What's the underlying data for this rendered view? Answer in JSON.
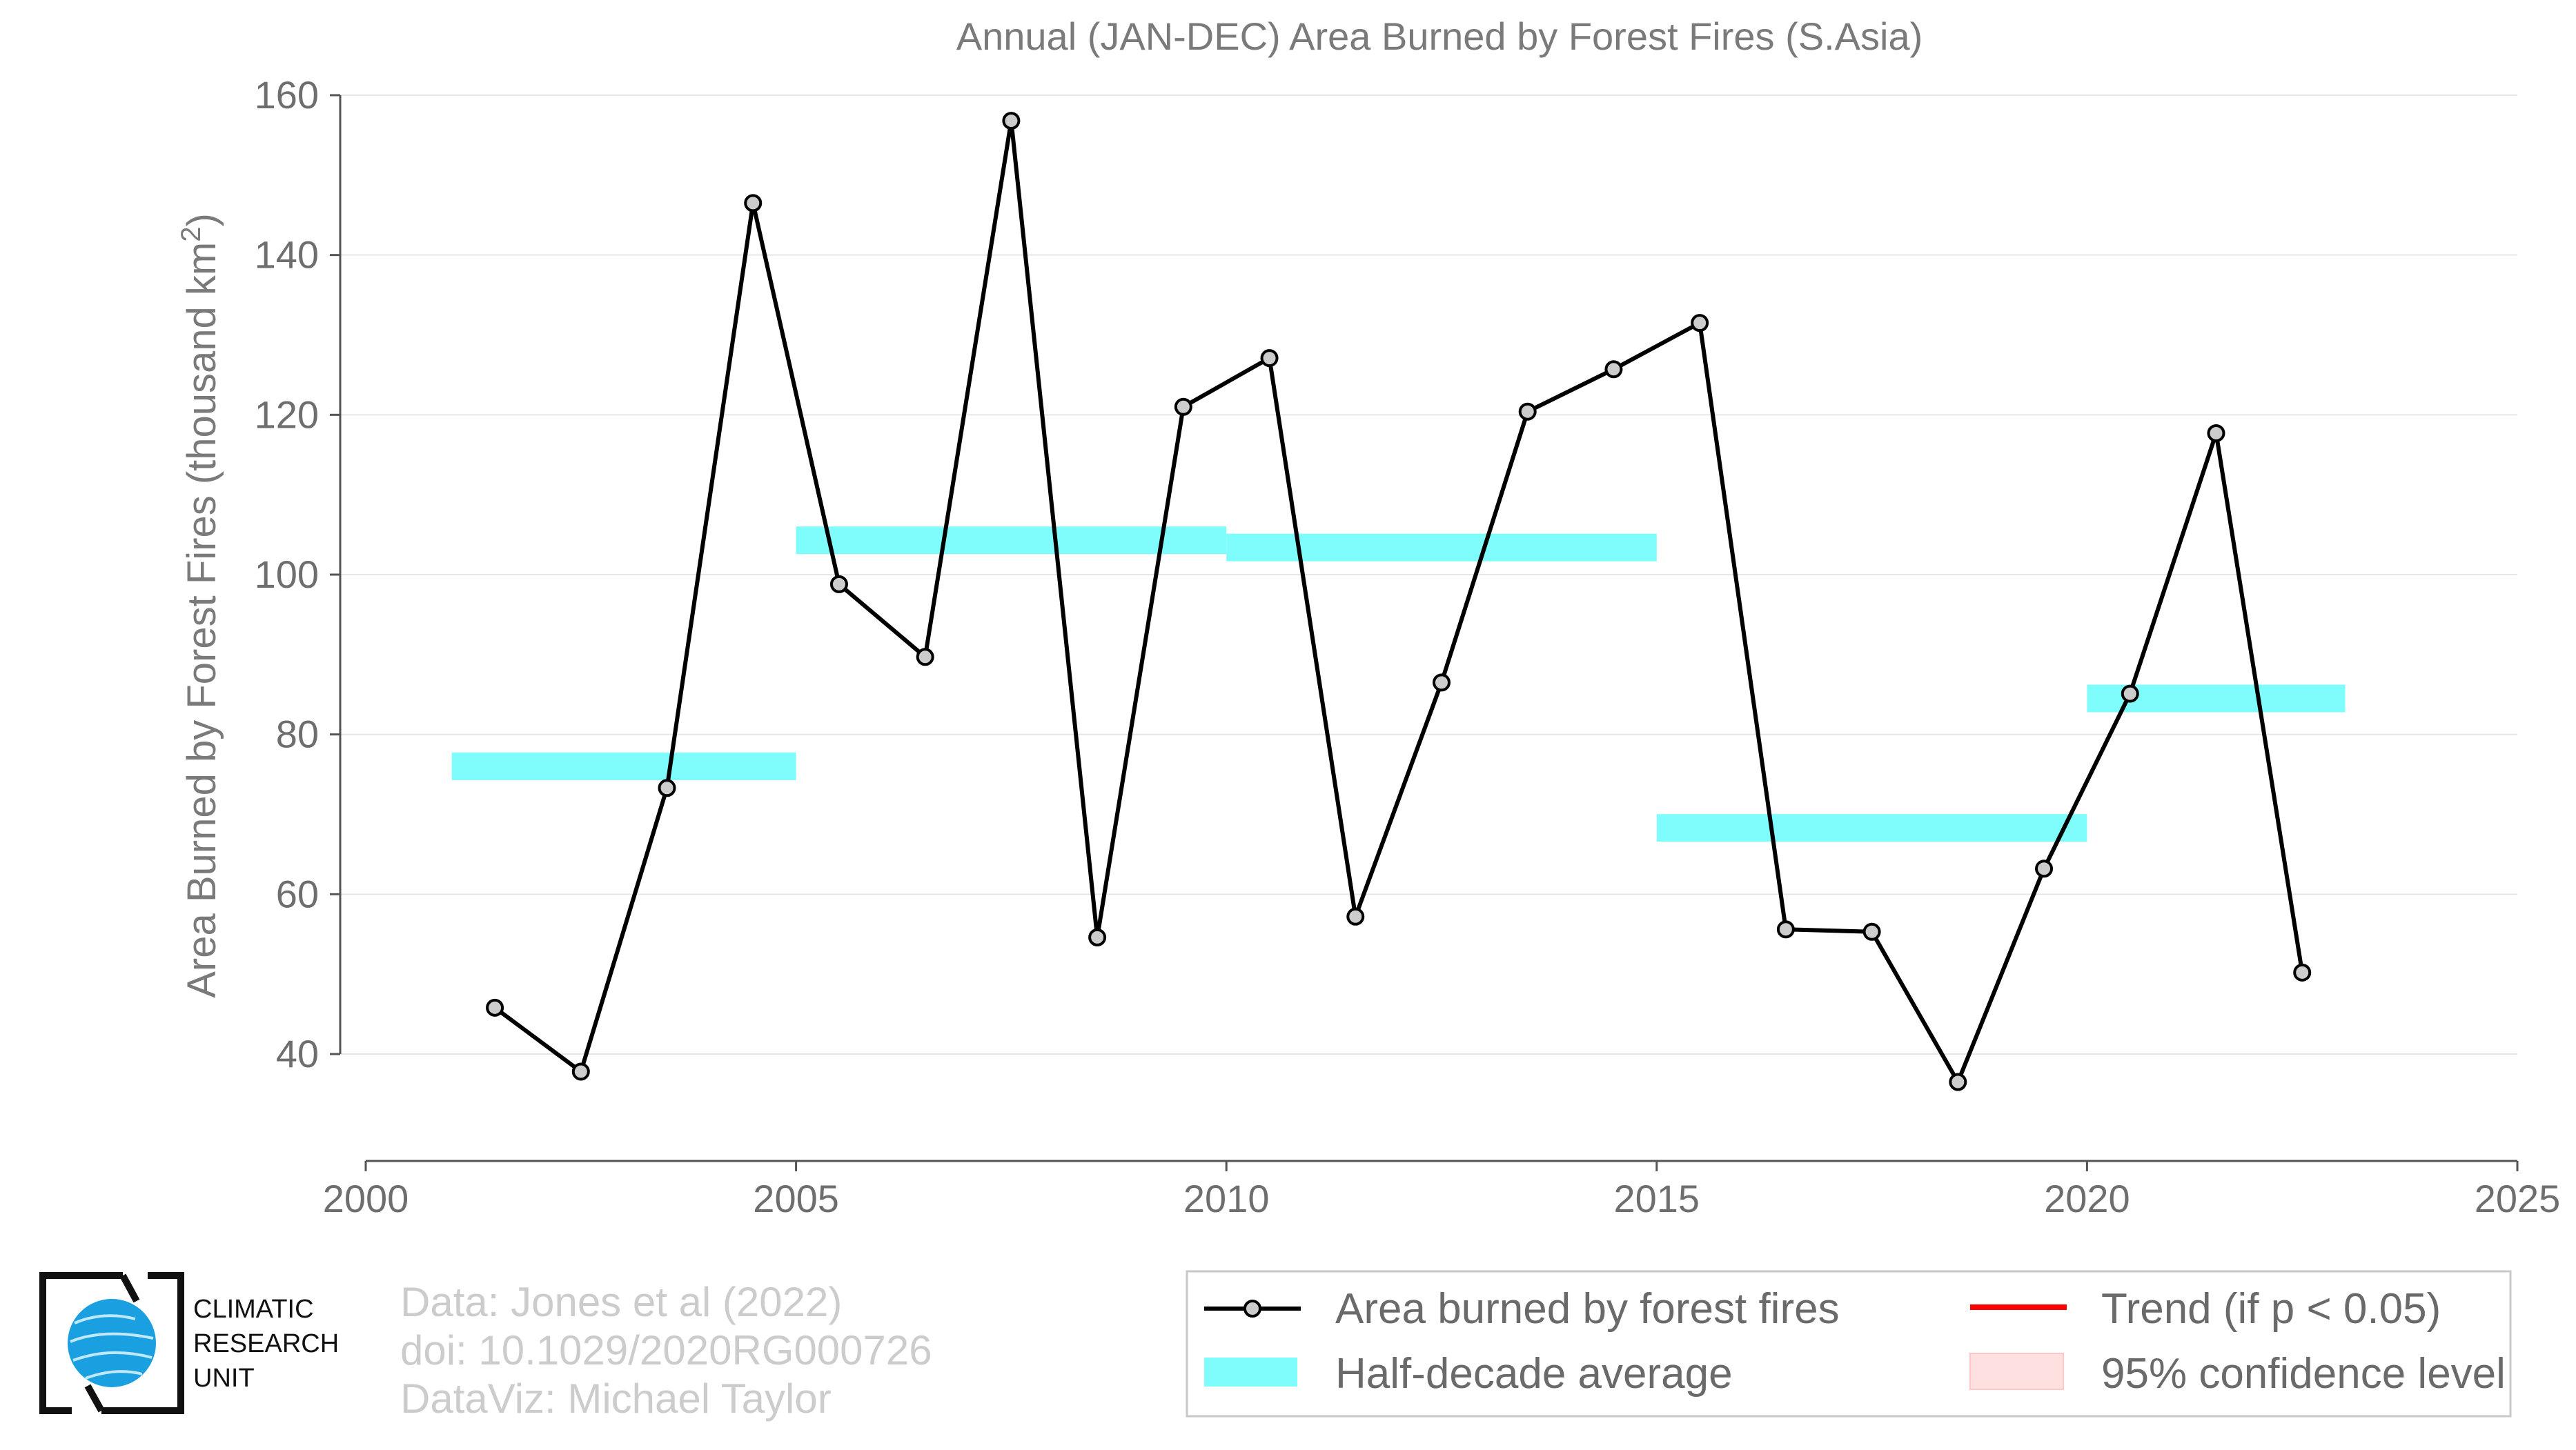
{
  "chart_data": {
    "type": "line",
    "title": "Annual (JAN-DEC) Area Burned by Forest Fires (S.Asia)",
    "xlabel": "",
    "ylabel": "Area Burned by Forest Fires (thousand km",
    "ylabel_superscript": "2",
    "ylabel_close": ")",
    "xlim": [
      2000,
      2025
    ],
    "ylim": [
      27,
      160
    ],
    "xticks": [
      2000,
      2005,
      2010,
      2015,
      2020,
      2025
    ],
    "yticks": [
      40,
      60,
      80,
      100,
      120,
      140,
      160
    ],
    "grid": true,
    "series": [
      {
        "name": "Area burned by forest fires",
        "type": "line",
        "color": "#000000",
        "x": [
          2001.5,
          2002.5,
          2003.5,
          2004.5,
          2005.5,
          2006.5,
          2007.5,
          2008.5,
          2009.5,
          2010.5,
          2011.5,
          2012.5,
          2013.5,
          2014.5,
          2015.5,
          2016.5,
          2017.5,
          2018.5,
          2019.5,
          2020.5,
          2021.5,
          2022.5
        ],
        "values": [
          45.8,
          37.8,
          73.3,
          146.5,
          98.8,
          89.7,
          156.8,
          54.6,
          121.0,
          127.1,
          57.2,
          86.5,
          120.4,
          125.7,
          131.5,
          55.6,
          55.3,
          36.5,
          63.2,
          85.1,
          117.7,
          50.2
        ]
      },
      {
        "name": "Half-decade average",
        "type": "step",
        "color": "#7ffcfc",
        "segments": [
          {
            "x0": 2001,
            "x1": 2005,
            "value": 76.0
          },
          {
            "x0": 2005,
            "x1": 2010,
            "value": 104.3
          },
          {
            "x0": 2010,
            "x1": 2015,
            "value": 103.4
          },
          {
            "x0": 2015,
            "x1": 2020,
            "value": 68.3
          },
          {
            "x0": 2020,
            "x1": 2023,
            "value": 84.5
          }
        ]
      }
    ],
    "legend": {
      "placement": "bottom-right",
      "entries": [
        {
          "label": "Area burned by forest fires",
          "symbol": "line-marker",
          "color": "#000000"
        },
        {
          "label": "Trend (if p < 0.05)",
          "symbol": "line",
          "color": "#ff0000"
        },
        {
          "label": "Half-decade average",
          "symbol": "band",
          "color": "#7ffcfc"
        },
        {
          "label": "95% confidence level",
          "symbol": "patch",
          "color": "#ffe0e0"
        }
      ]
    }
  },
  "credits": {
    "line1": "Data: Jones et al (2022)",
    "line2": "doi: 10.1029/2020RG000726",
    "line3": "DataViz: Michael Taylor"
  },
  "logo": {
    "line1": "CLIMATIC",
    "line2": "RESEARCH",
    "line3": "UNIT",
    "globe_color": "#1aa0e0"
  }
}
